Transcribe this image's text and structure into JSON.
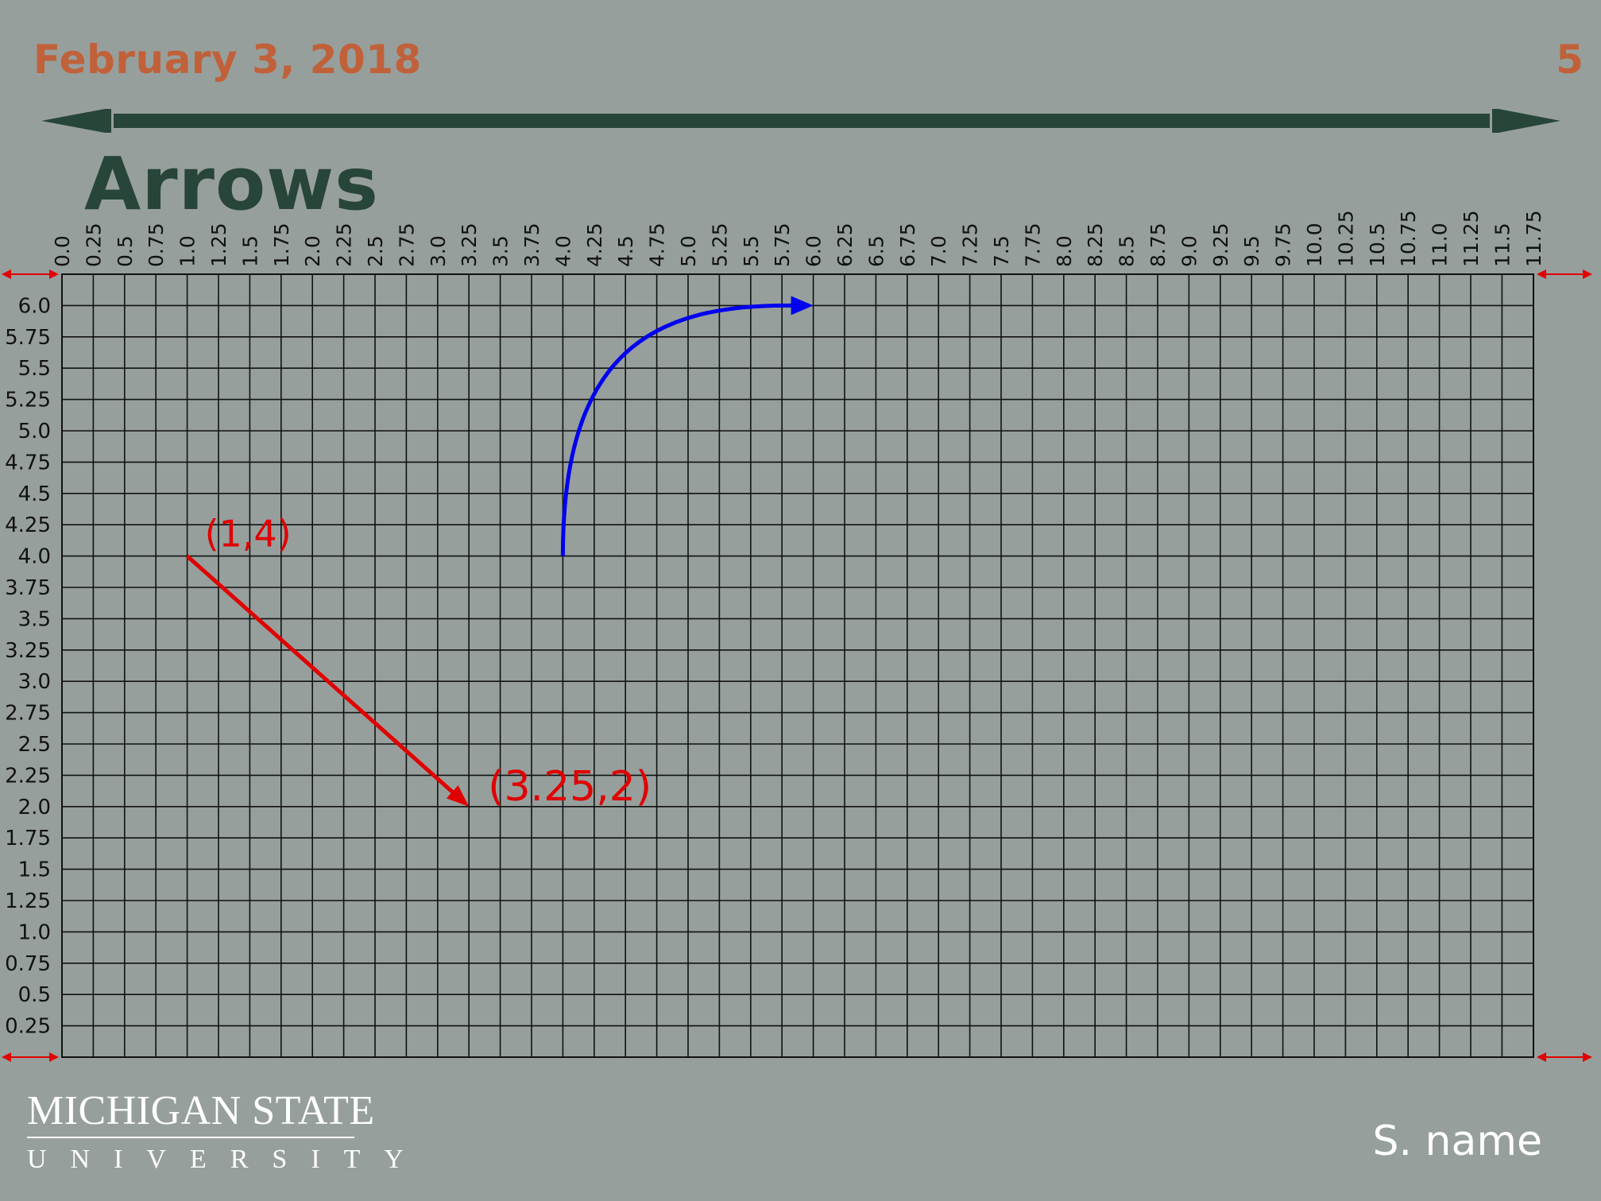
{
  "slide": {
    "date": "February 3, 2018",
    "page_number": "5",
    "title": "Arrows",
    "author": "S. name"
  },
  "logo": {
    "line1": "MICHIGAN STATE",
    "line2": "UNIVERSITY"
  },
  "colors": {
    "background": "#979f9d",
    "accent": "#c0613a",
    "dark_green": "#274538",
    "red": "#e00000",
    "blue": "#0000ee"
  },
  "grid": {
    "x_ticks": [
      "0.0",
      "0.25",
      "0.5",
      "0.75",
      "1.0",
      "1.25",
      "1.5",
      "1.75",
      "2.0",
      "2.25",
      "2.5",
      "2.75",
      "3.0",
      "3.25",
      "3.5",
      "3.75",
      "4.0",
      "4.25",
      "4.5",
      "4.75",
      "5.0",
      "5.25",
      "5.5",
      "5.75",
      "6.0",
      "6.25",
      "6.5",
      "6.75",
      "7.0",
      "7.25",
      "7.5",
      "7.75",
      "8.0",
      "8.25",
      "8.5",
      "8.75",
      "9.0",
      "9.25",
      "9.5",
      "9.75",
      "10.0",
      "10.25",
      "10.5",
      "10.75",
      "11.0",
      "11.25",
      "11.5",
      "11.75"
    ],
    "y_ticks": [
      "6.0",
      "5.75",
      "5.5",
      "5.25",
      "5.0",
      "4.75",
      "4.5",
      "4.25",
      "4.0",
      "3.75",
      "3.5",
      "3.25",
      "3.0",
      "2.75",
      "2.5",
      "2.25",
      "2.0",
      "1.75",
      "1.5",
      "1.25",
      "1.0",
      "0.75",
      "0.5",
      "0.25"
    ],
    "x_range": [
      0,
      11.75
    ],
    "y_range": [
      0,
      6.0
    ],
    "step": 0.25
  },
  "arrows": {
    "straight": {
      "from": [
        1,
        4
      ],
      "to": [
        3.25,
        2
      ],
      "color": "red",
      "from_label": "(1,4)",
      "to_label": "(3.25,2)"
    },
    "curved": {
      "from": [
        4,
        4
      ],
      "to": [
        6,
        6
      ],
      "color": "blue"
    }
  }
}
